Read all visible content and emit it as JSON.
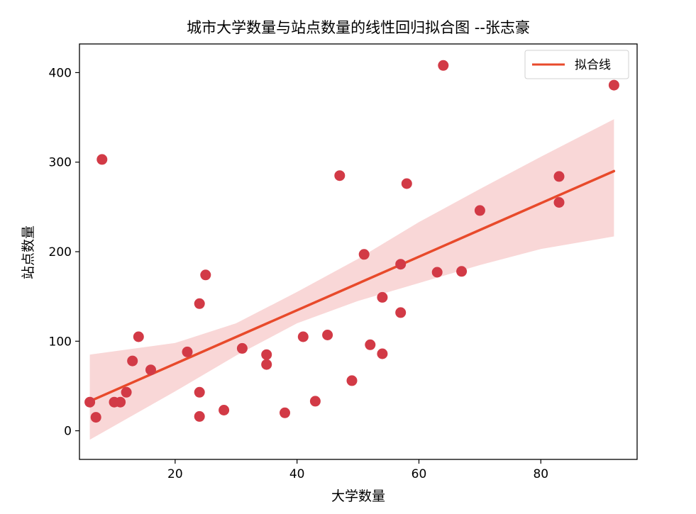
{
  "chart_data": {
    "type": "scatter",
    "title": "城市大学数量与站点数量的线性回归拟合图 --张志豪",
    "xlabel": "大学数量",
    "ylabel": "站点数量",
    "xlim": [
      4.3,
      95.8
    ],
    "ylim": [
      -32,
      432
    ],
    "xticks": [
      20,
      40,
      60,
      80
    ],
    "yticks": [
      0,
      100,
      200,
      300,
      400
    ],
    "grid": false,
    "legend": {
      "position": "top-right",
      "entries": [
        "拟合线"
      ]
    },
    "colors": {
      "points": "#d23a46",
      "fit_line": "#e84a2b",
      "confidence_band": "#f7c9c9"
    },
    "series": [
      {
        "type": "scatter",
        "x": [
          6,
          7,
          8,
          10,
          11,
          12,
          13,
          14,
          16,
          22,
          24,
          24,
          24,
          25,
          28,
          31,
          35,
          35,
          38,
          41,
          43,
          45,
          47,
          49,
          51,
          52,
          54,
          54,
          57,
          57,
          58,
          63,
          64,
          67,
          70,
          83,
          83,
          92
        ],
        "y": [
          32,
          15,
          303,
          32,
          32,
          43,
          78,
          105,
          68,
          88,
          142,
          43,
          16,
          174,
          23,
          92,
          74,
          85,
          20,
          105,
          33,
          107,
          285,
          56,
          197,
          96,
          86,
          149,
          132,
          186,
          276,
          177,
          408,
          178,
          246,
          284,
          255,
          386
        ]
      },
      {
        "name": "拟合线",
        "type": "line",
        "x": [
          6,
          92
        ],
        "y": [
          33,
          290
        ]
      },
      {
        "type": "area",
        "x": [
          6,
          20,
          30,
          40,
          50,
          60,
          70,
          80,
          92
        ],
        "lower": [
          -10,
          44,
          84,
          120,
          145,
          165,
          185,
          203,
          217
        ],
        "upper": [
          85,
          98,
          120,
          155,
          192,
          233,
          270,
          306,
          348
        ]
      }
    ]
  }
}
